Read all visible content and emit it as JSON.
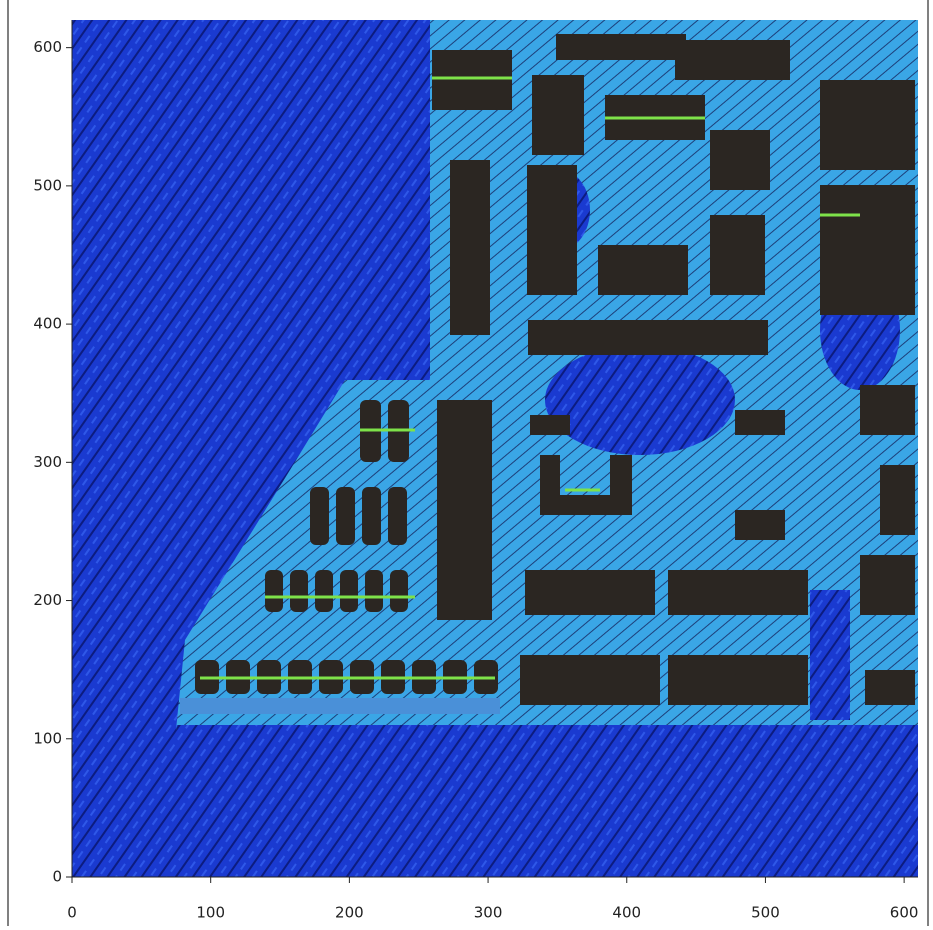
{
  "chart_data": {
    "type": "field",
    "xlim": [
      0,
      610
    ],
    "ylim": [
      0,
      620
    ],
    "xticks": [
      0,
      100,
      200,
      300,
      400,
      500,
      600
    ],
    "yticks": [
      0,
      100,
      200,
      300,
      400,
      500,
      600
    ]
  }
}
